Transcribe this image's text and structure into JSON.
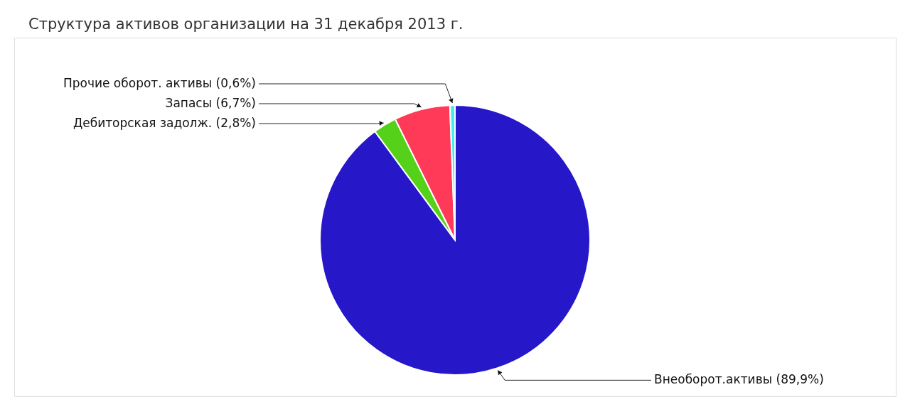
{
  "chart_data": {
    "type": "pie",
    "title": "Структура активов организации на 31 декабря 2013 г.",
    "categories": [
      "Внеоборот.активы (89,9%)",
      "Дебиторская задолж. (2,8%)",
      "Запасы (6,7%)",
      "Прочие оборот. активы (0,6%)"
    ],
    "values": [
      89.9,
      2.8,
      6.7,
      0.6
    ],
    "colors": [
      "#2618c8",
      "#56d11a",
      "#ff3a58",
      "#40f0f0"
    ]
  }
}
